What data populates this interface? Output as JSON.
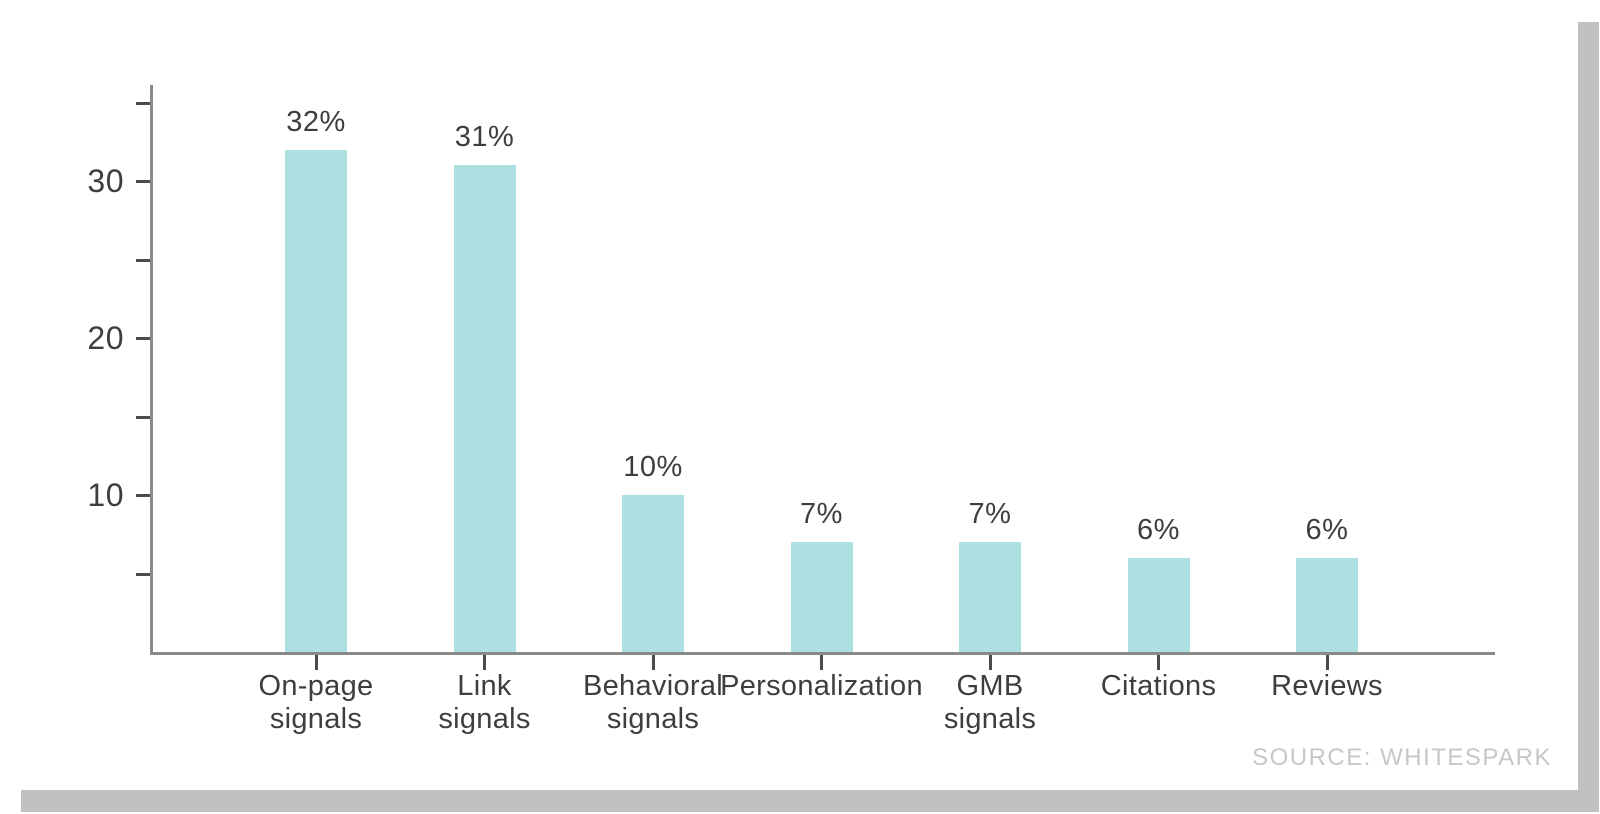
{
  "chart_data": {
    "type": "bar",
    "categories": [
      "On-page signals",
      "Link signals",
      "Behavioral signals",
      "Personalization",
      "GMB signals",
      "Citations",
      "Reviews"
    ],
    "category_lines": [
      [
        "On-page",
        "signals"
      ],
      [
        "Link",
        "signals"
      ],
      [
        "Behavioral",
        "signals"
      ],
      [
        "Personalization"
      ],
      [
        "GMB",
        "signals"
      ],
      [
        "Citations"
      ],
      [
        "Reviews"
      ]
    ],
    "values": [
      32,
      31,
      10,
      7,
      7,
      6,
      6
    ],
    "value_labels": [
      "32%",
      "31%",
      "10%",
      "7%",
      "7%",
      "6%",
      "6%"
    ],
    "title": "",
    "xlabel": "",
    "ylabel": "",
    "ylim": [
      0,
      36
    ],
    "yticks_labeled": [
      10,
      20,
      30
    ],
    "yticks_minor": [
      5,
      15,
      25,
      35
    ],
    "grid": false,
    "legend": "none",
    "bar_color": "#ade0e0",
    "text_color": "#3e3e3e",
    "axis_color": "#8a8a8a",
    "tick_color": "#4b4b4b"
  },
  "source": {
    "label": "SOURCE: WHITESPARK",
    "color": "#c4c8ca"
  },
  "card": {
    "background": "#ffffff",
    "shadow_color": "#bfc1c3"
  }
}
